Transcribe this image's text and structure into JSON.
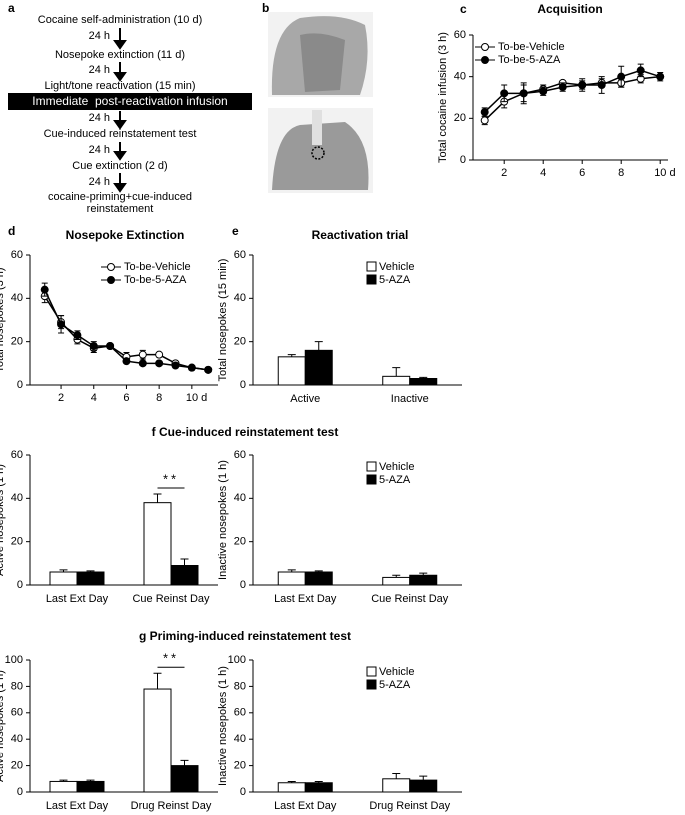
{
  "flowchart": {
    "panel": "a",
    "steps": [
      "Cocaine self-administration (10 d)",
      "Nosepoke extinction (11 d)",
      "Light/tone reactivation (15 min)",
      "Immediate  post-reactivation infusion",
      "Cue-induced reinstatement test",
      "Cue extinction (2 d)"
    ],
    "final_step": [
      "cocaine-priming+cue-induced",
      "reinstatement"
    ],
    "intervals": [
      "24 h",
      "24 h",
      "24 h",
      "24 h",
      "24 h"
    ]
  },
  "histology": {
    "panel": "b"
  },
  "chart_data": [
    {
      "type": "line",
      "panel": "c",
      "title": "Acquisition",
      "ylabel": "Total cocaine infusion (3 h)",
      "legend": "upper left",
      "x": [
        1,
        2,
        3,
        4,
        5,
        6,
        7,
        8,
        9,
        10
      ],
      "xlim": [
        0.4,
        10.4
      ],
      "xticks": [
        2,
        4,
        6,
        8,
        {
          "value": 10,
          "label": "10 d"
        }
      ],
      "ylim": [
        0,
        60
      ],
      "yticks": [
        0,
        20,
        40,
        60
      ],
      "series": [
        {
          "name": "To-be-Vehicle",
          "color": "#000000",
          "fill": "#ffffff",
          "values": [
            19,
            28,
            32,
            34,
            37,
            36,
            37,
            37,
            39,
            40
          ],
          "errors": [
            2,
            3,
            4,
            2,
            1,
            2,
            2,
            2,
            2,
            1
          ]
        },
        {
          "name": "To-be-5-AZA",
          "color": "#000000",
          "fill": "#000000",
          "values": [
            23,
            32,
            32,
            33,
            35,
            36,
            36,
            40,
            43,
            40
          ],
          "errors": [
            2,
            4,
            5,
            2,
            2,
            3,
            4,
            5,
            3,
            2
          ]
        }
      ]
    },
    {
      "type": "line",
      "panel": "d",
      "title": "Nosepoke Extinction",
      "ylabel": "Total nosepokes (3 h)",
      "legend": "upper right",
      "x": [
        1,
        2,
        3,
        4,
        5,
        6,
        7,
        8,
        9,
        10,
        11
      ],
      "xlim": [
        0.1,
        11.6
      ],
      "xticks": [
        2,
        4,
        6,
        8,
        {
          "value": 10,
          "label": "10 d"
        }
      ],
      "ylim": [
        0,
        60
      ],
      "yticks": [
        0,
        20,
        40,
        60
      ],
      "series": [
        {
          "name": "To-be-Vehicle",
          "color": "#000000",
          "fill": "#ffffff",
          "values": [
            41,
            29,
            21,
            17,
            18,
            13,
            14,
            14,
            10,
            8,
            7
          ],
          "errors": [
            3,
            3,
            2,
            2,
            1,
            2,
            2,
            1,
            1,
            1,
            1
          ]
        },
        {
          "name": "To-be-5-AZA",
          "color": "#000000",
          "fill": "#000000",
          "values": [
            44,
            28,
            23,
            18,
            18,
            11,
            10,
            10,
            9,
            8,
            7
          ],
          "errors": [
            3,
            4,
            2,
            2,
            1,
            1,
            1,
            1,
            1,
            1,
            1
          ]
        }
      ]
    },
    {
      "type": "bar",
      "panel": "e",
      "title": "Reactivation trial",
      "ylabel": "Total nosepokes (15 min)",
      "legend": "upper right",
      "categories": [
        "Active",
        "Inactive"
      ],
      "ylim": [
        0,
        60
      ],
      "yticks": [
        0,
        20,
        40,
        60
      ],
      "series": [
        {
          "name": "Vehicle",
          "color": "#ffffff",
          "values": [
            13,
            4
          ],
          "errors": [
            1,
            4
          ]
        },
        {
          "name": "5-AZA",
          "color": "#000000",
          "values": [
            16,
            3
          ],
          "errors": [
            4,
            0.5
          ]
        }
      ]
    },
    {
      "type": "bar",
      "panel": "f",
      "title": "Cue-induced reinstatement test",
      "ylabel": "Active  nosepokes (1 h)",
      "categories": [
        "Last Ext Day",
        "Cue Reinst Day"
      ],
      "ylim": [
        0,
        60
      ],
      "yticks": [
        0,
        20,
        40,
        60
      ],
      "significance": [
        null,
        "**"
      ],
      "series": [
        {
          "name": "Vehicle",
          "color": "#ffffff",
          "values": [
            6,
            38
          ],
          "errors": [
            1,
            4
          ]
        },
        {
          "name": "5-AZA",
          "color": "#000000",
          "values": [
            6,
            9
          ],
          "errors": [
            0.5,
            3
          ]
        }
      ]
    },
    {
      "type": "bar",
      "ylabel": "Inactive  nosepokes (1 h)",
      "legend": "upper right",
      "categories": [
        "Last Ext Day",
        "Cue Reinst Day"
      ],
      "ylim": [
        0,
        60
      ],
      "yticks": [
        0,
        20,
        40,
        60
      ],
      "series": [
        {
          "name": "Vehicle",
          "color": "#ffffff",
          "values": [
            6,
            3.5
          ],
          "errors": [
            1,
            1
          ]
        },
        {
          "name": "5-AZA",
          "color": "#000000",
          "values": [
            6,
            4.5
          ],
          "errors": [
            0.5,
            1
          ]
        }
      ]
    },
    {
      "type": "bar",
      "panel": "g",
      "title": "Priming-induced reinstatement test",
      "ylabel": "Active  nosepokes (1 h)",
      "categories": [
        "Last Ext Day",
        "Drug Reinst Day"
      ],
      "ylim": [
        0,
        100
      ],
      "yticks": [
        0,
        20,
        40,
        60,
        80,
        100
      ],
      "significance": [
        null,
        "**"
      ],
      "series": [
        {
          "name": "Vehicle",
          "color": "#ffffff",
          "values": [
            8,
            78
          ],
          "errors": [
            1,
            12
          ]
        },
        {
          "name": "5-AZA",
          "color": "#000000",
          "values": [
            8,
            20
          ],
          "errors": [
            1,
            4
          ]
        }
      ]
    },
    {
      "type": "bar",
      "ylabel": "Inactive  nosepokes (1 h)",
      "legend": "upper right",
      "categories": [
        "Last Ext Day",
        "Drug Reinst Day"
      ],
      "ylim": [
        0,
        100
      ],
      "yticks": [
        0,
        20,
        40,
        60,
        80,
        100
      ],
      "series": [
        {
          "name": "Vehicle",
          "color": "#ffffff",
          "values": [
            7,
            10
          ],
          "errors": [
            1,
            4
          ]
        },
        {
          "name": "5-AZA",
          "color": "#000000",
          "values": [
            7,
            9
          ],
          "errors": [
            1,
            3
          ]
        }
      ]
    }
  ]
}
